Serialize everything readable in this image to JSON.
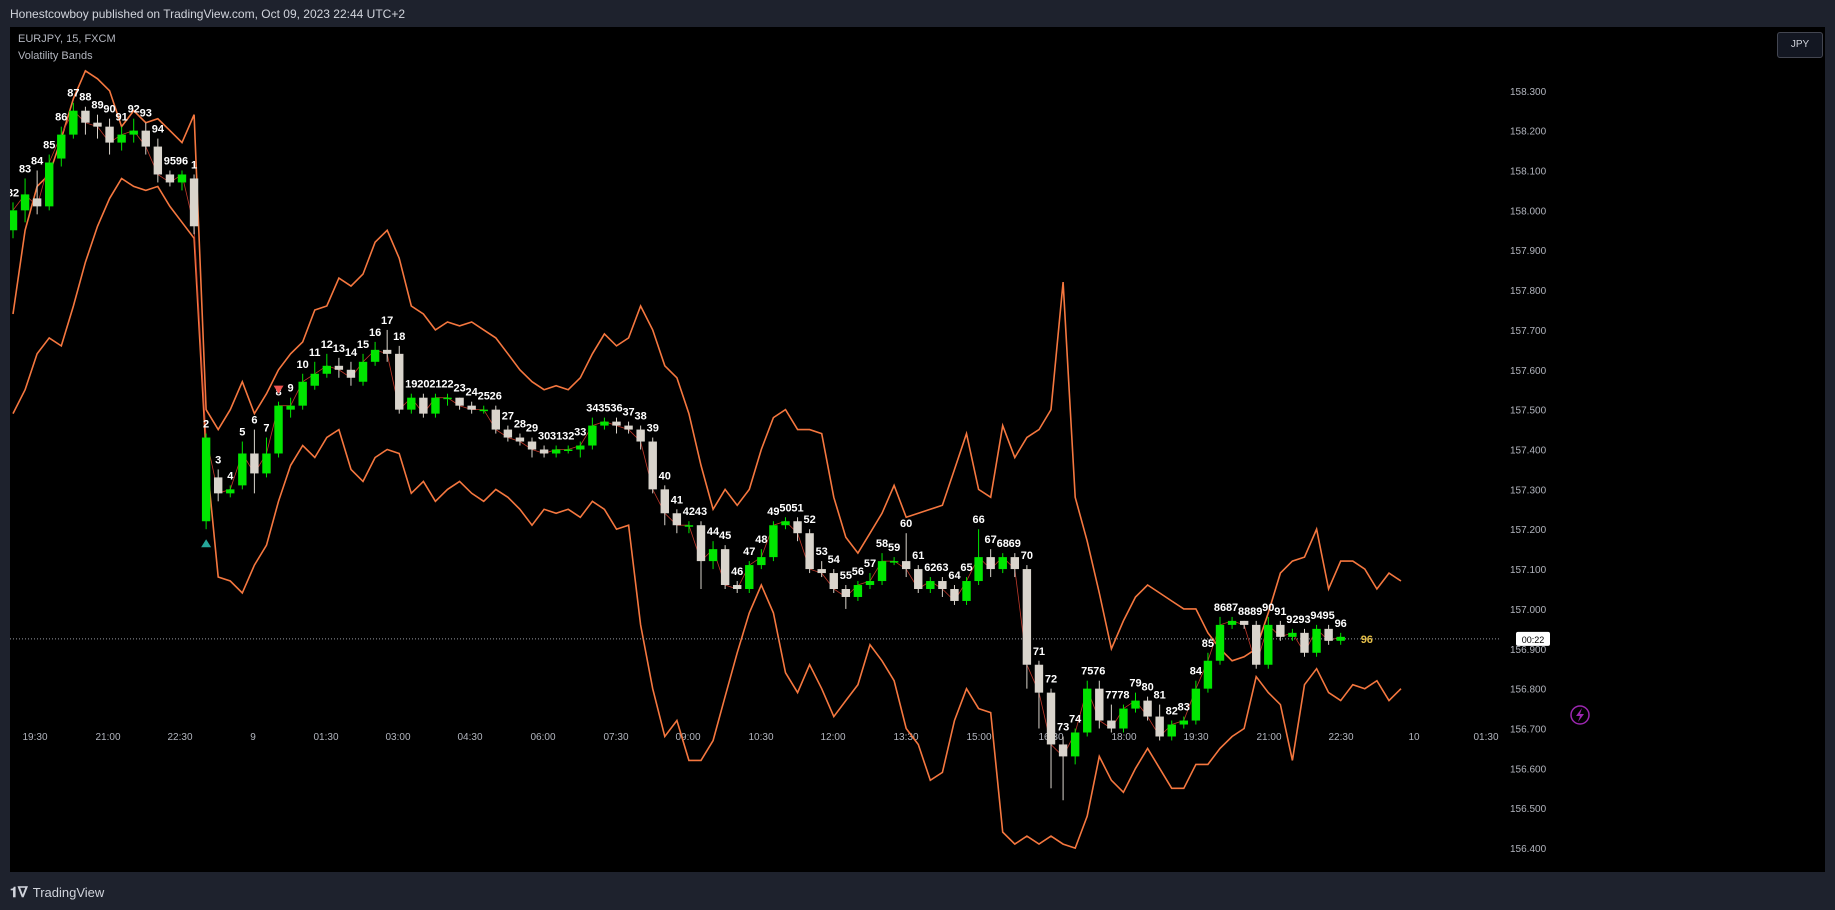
{
  "header": {
    "published": "Honestcowboy published on TradingView.com, Oct 09, 2023 22:44 UTC+2"
  },
  "legend": {
    "symbol": "EURJPY, 15, FXCM",
    "indicator": "Volatility Bands"
  },
  "currency_button": "JPY",
  "footer": {
    "brand": "TradingView"
  },
  "price_scale": {
    "labels": [
      "158.300",
      "158.200",
      "158.100",
      "158.000",
      "157.900",
      "157.800",
      "157.700",
      "157.600",
      "157.500",
      "157.400",
      "157.300",
      "157.200",
      "157.100",
      "157.000",
      "156.900",
      "156.800",
      "156.700",
      "156.600",
      "156.500",
      "156.400"
    ]
  },
  "countdown": "00:22",
  "last_count": "96",
  "colors": {
    "bull": "#00e600",
    "bear": "#d9d4cc",
    "band": "#f5773f",
    "counter": "#ffffff",
    "last_count": "#e6c04a",
    "background": "#000000"
  },
  "chart_data": {
    "type": "candlestick",
    "symbol": "EURJPY",
    "timeframe": "15",
    "ylim": [
      156.34,
      158.46
    ],
    "x_ticks": [
      "19:30",
      "21:00",
      "22:30",
      "9",
      "01:30",
      "03:00",
      "04:30",
      "06:00",
      "07:30",
      "09:00",
      "10:30",
      "12:00",
      "13:30",
      "15:00",
      "16:30",
      "18:00",
      "19:30",
      "21:00",
      "22:30",
      "10",
      "01:30"
    ],
    "y_ticks": [
      158.3,
      158.2,
      158.1,
      158.0,
      157.9,
      157.8,
      157.7,
      157.6,
      157.5,
      157.4,
      157.3,
      157.2,
      157.1,
      157.0,
      156.9,
      156.8,
      156.7,
      156.6,
      156.5,
      156.4
    ],
    "last_price": 156.925,
    "candles": [
      [
        157.95,
        158.0,
        157.93,
        158.02,
        "82"
      ],
      [
        158.0,
        158.04,
        157.97,
        158.08,
        "83"
      ],
      [
        158.03,
        158.01,
        157.99,
        158.1,
        "84"
      ],
      [
        158.01,
        158.12,
        158.0,
        158.14,
        "85"
      ],
      [
        158.13,
        158.19,
        158.11,
        158.21,
        "86"
      ],
      [
        158.19,
        158.25,
        158.18,
        158.27,
        "87"
      ],
      [
        158.25,
        158.22,
        158.19,
        158.26,
        "88"
      ],
      [
        158.22,
        158.21,
        158.18,
        158.24,
        "89"
      ],
      [
        158.21,
        158.17,
        158.14,
        158.23,
        "90"
      ],
      [
        158.17,
        158.19,
        158.15,
        158.21,
        "91"
      ],
      [
        158.19,
        158.2,
        158.17,
        158.23,
        "92"
      ],
      [
        158.2,
        158.16,
        158.14,
        158.22,
        "93"
      ],
      [
        158.16,
        158.09,
        158.07,
        158.18,
        "94"
      ],
      [
        158.09,
        158.07,
        158.06,
        158.1,
        "95"
      ],
      [
        158.07,
        158.09,
        158.05,
        158.1,
        "96"
      ],
      [
        158.08,
        157.96,
        157.94,
        158.09,
        "1"
      ],
      [
        157.22,
        157.43,
        157.2,
        157.44,
        "2"
      ],
      [
        157.33,
        157.29,
        157.27,
        157.35,
        "3"
      ],
      [
        157.29,
        157.3,
        157.28,
        157.31,
        "4"
      ],
      [
        157.31,
        157.39,
        157.3,
        157.42,
        "5"
      ],
      [
        157.39,
        157.34,
        157.29,
        157.45,
        "6"
      ],
      [
        157.34,
        157.39,
        157.33,
        157.43,
        "7"
      ],
      [
        157.39,
        157.51,
        157.38,
        157.52,
        "8"
      ],
      [
        157.5,
        157.51,
        157.48,
        157.53,
        "9"
      ],
      [
        157.51,
        157.57,
        157.5,
        157.59,
        "10"
      ],
      [
        157.56,
        157.59,
        157.55,
        157.62,
        "11"
      ],
      [
        157.59,
        157.61,
        157.58,
        157.64,
        "12"
      ],
      [
        157.61,
        157.6,
        157.58,
        157.63,
        "13"
      ],
      [
        157.6,
        157.58,
        157.56,
        157.62,
        "14"
      ],
      [
        157.57,
        157.62,
        157.56,
        157.64,
        "15"
      ],
      [
        157.62,
        157.65,
        157.61,
        157.67,
        "16"
      ],
      [
        157.65,
        157.64,
        157.62,
        157.7,
        "17"
      ],
      [
        157.64,
        157.5,
        157.49,
        157.66,
        "18"
      ],
      [
        157.5,
        157.53,
        157.49,
        157.54,
        "19"
      ],
      [
        157.53,
        157.49,
        157.48,
        157.54,
        "20"
      ],
      [
        157.49,
        157.53,
        157.48,
        157.54,
        "21"
      ],
      [
        157.53,
        157.53,
        157.51,
        157.54,
        "22"
      ],
      [
        157.53,
        157.51,
        157.5,
        157.53,
        "23"
      ],
      [
        157.51,
        157.5,
        157.49,
        157.52,
        "24"
      ],
      [
        157.5,
        157.5,
        157.49,
        157.51,
        "25"
      ],
      [
        157.5,
        157.45,
        157.44,
        157.51,
        "26"
      ],
      [
        157.45,
        157.43,
        157.42,
        157.46,
        "27"
      ],
      [
        157.43,
        157.42,
        157.41,
        157.44,
        "28"
      ],
      [
        157.42,
        157.4,
        157.38,
        157.43,
        "29"
      ],
      [
        157.4,
        157.39,
        157.38,
        157.41,
        "30"
      ],
      [
        157.39,
        157.4,
        157.38,
        157.41,
        "31"
      ],
      [
        157.4,
        157.4,
        157.39,
        157.41,
        "32"
      ],
      [
        157.4,
        157.41,
        157.38,
        157.42,
        "33"
      ],
      [
        157.41,
        157.46,
        157.4,
        157.48,
        "34"
      ],
      [
        157.46,
        157.47,
        157.45,
        157.48,
        "35"
      ],
      [
        157.47,
        157.46,
        157.44,
        157.48,
        "36"
      ],
      [
        157.46,
        157.45,
        157.44,
        157.47,
        "37"
      ],
      [
        157.45,
        157.42,
        157.4,
        157.46,
        "38"
      ],
      [
        157.42,
        157.3,
        157.29,
        157.43,
        "39"
      ],
      [
        157.3,
        157.24,
        157.21,
        157.31,
        "40"
      ],
      [
        157.24,
        157.21,
        157.19,
        157.25,
        "41"
      ],
      [
        157.21,
        157.21,
        157.19,
        157.22,
        "42"
      ],
      [
        157.21,
        157.12,
        157.05,
        157.22,
        "43"
      ],
      [
        157.12,
        157.15,
        157.1,
        157.17,
        "44"
      ],
      [
        157.15,
        157.06,
        157.05,
        157.16,
        "45"
      ],
      [
        157.06,
        157.05,
        157.04,
        157.07,
        "46"
      ],
      [
        157.05,
        157.11,
        157.04,
        157.12,
        "47"
      ],
      [
        157.11,
        157.13,
        157.1,
        157.15,
        "48"
      ],
      [
        157.13,
        157.21,
        157.12,
        157.22,
        "49"
      ],
      [
        157.21,
        157.22,
        157.2,
        157.23,
        "50"
      ],
      [
        157.22,
        157.19,
        157.17,
        157.23,
        "51"
      ],
      [
        157.19,
        157.1,
        157.09,
        157.2,
        "52"
      ],
      [
        157.1,
        157.09,
        157.08,
        157.12,
        "53"
      ],
      [
        157.09,
        157.05,
        157.04,
        157.1,
        "54"
      ],
      [
        157.05,
        157.03,
        157.0,
        157.06,
        "55"
      ],
      [
        157.03,
        157.06,
        157.02,
        157.07,
        "56"
      ],
      [
        157.06,
        157.07,
        157.05,
        157.09,
        "57"
      ],
      [
        157.07,
        157.12,
        157.06,
        157.14,
        "58"
      ],
      [
        157.12,
        157.12,
        157.11,
        157.13,
        "59"
      ],
      [
        157.12,
        157.1,
        157.08,
        157.19,
        "60"
      ],
      [
        157.1,
        157.05,
        157.04,
        157.11,
        "61"
      ],
      [
        157.05,
        157.07,
        157.04,
        157.08,
        "62"
      ],
      [
        157.07,
        157.05,
        157.03,
        157.08,
        "63"
      ],
      [
        157.05,
        157.02,
        157.01,
        157.06,
        "64"
      ],
      [
        157.02,
        157.07,
        157.01,
        157.08,
        "65"
      ],
      [
        157.07,
        157.13,
        157.06,
        157.2,
        "66"
      ],
      [
        157.13,
        157.1,
        157.08,
        157.15,
        "67"
      ],
      [
        157.1,
        157.13,
        157.09,
        157.14,
        "68"
      ],
      [
        157.13,
        157.1,
        157.08,
        157.14,
        "69"
      ],
      [
        157.1,
        156.86,
        156.8,
        157.11,
        "70"
      ],
      [
        156.86,
        156.79,
        156.7,
        156.87,
        "71"
      ],
      [
        156.79,
        156.66,
        156.55,
        156.8,
        "72"
      ],
      [
        156.66,
        156.63,
        156.52,
        156.68,
        "73"
      ],
      [
        156.63,
        156.69,
        156.61,
        156.7,
        "74"
      ],
      [
        156.69,
        156.8,
        156.68,
        156.82,
        "75"
      ],
      [
        156.8,
        156.72,
        156.7,
        156.82,
        "76"
      ],
      [
        156.72,
        156.7,
        156.69,
        156.76,
        "77"
      ],
      [
        156.7,
        156.75,
        156.69,
        156.76,
        "78"
      ],
      [
        156.75,
        156.77,
        156.74,
        156.79,
        "79"
      ],
      [
        156.77,
        156.73,
        156.72,
        156.78,
        "80"
      ],
      [
        156.73,
        156.68,
        156.67,
        156.76,
        "81"
      ],
      [
        156.68,
        156.71,
        156.67,
        156.72,
        "82"
      ],
      [
        156.71,
        156.72,
        156.7,
        156.73,
        "83"
      ],
      [
        156.72,
        156.8,
        156.71,
        156.82,
        "84"
      ],
      [
        156.8,
        156.87,
        156.79,
        156.89,
        "85"
      ],
      [
        156.87,
        156.96,
        156.86,
        156.98,
        "86"
      ],
      [
        156.96,
        156.97,
        156.95,
        156.98,
        "87"
      ],
      [
        156.97,
        156.96,
        156.95,
        156.97,
        "88"
      ],
      [
        156.96,
        156.86,
        156.85,
        156.97,
        "89"
      ],
      [
        156.86,
        156.96,
        156.85,
        156.98,
        "90"
      ],
      [
        156.96,
        156.93,
        156.92,
        156.97,
        "91"
      ],
      [
        156.93,
        156.94,
        156.92,
        156.95,
        "92"
      ],
      [
        156.94,
        156.89,
        156.88,
        156.95,
        "93"
      ],
      [
        156.89,
        156.95,
        156.88,
        156.96,
        "94"
      ],
      [
        156.95,
        156.92,
        156.91,
        156.96,
        "95"
      ],
      [
        156.92,
        156.93,
        156.91,
        156.94,
        "96"
      ]
    ],
    "upper_band": [
      157.74,
      157.95,
      158.06,
      158.09,
      158.18,
      158.28,
      158.35,
      158.33,
      158.3,
      158.21,
      158.25,
      158.22,
      158.23,
      158.2,
      158.17,
      158.24,
      157.5,
      157.45,
      157.5,
      157.57,
      157.49,
      157.54,
      157.6,
      157.64,
      157.67,
      157.75,
      157.76,
      157.83,
      157.81,
      157.84,
      157.92,
      157.95,
      157.88,
      157.76,
      157.74,
      157.7,
      157.72,
      157.71,
      157.72,
      157.7,
      157.68,
      157.64,
      157.6,
      157.57,
      157.55,
      157.56,
      157.55,
      157.58,
      157.64,
      157.69,
      157.66,
      157.68,
      157.76,
      157.7,
      157.61,
      157.58,
      157.49,
      157.36,
      157.25,
      157.3,
      157.26,
      157.3,
      157.4,
      157.48,
      157.5,
      157.45,
      157.45,
      157.44,
      157.28,
      157.18,
      157.14,
      157.19,
      157.24,
      157.31,
      157.23,
      157.24,
      157.25,
      157.26,
      157.35,
      157.44,
      157.3,
      157.28,
      157.46,
      157.38,
      157.43,
      157.45,
      157.5,
      157.82,
      157.28,
      157.17,
      157.04,
      156.9,
      156.97,
      157.03,
      157.06,
      157.04,
      157.02,
      157.0,
      157.0,
      156.94,
      156.9,
      156.87,
      156.88,
      156.9,
      156.99,
      157.09,
      157.12,
      157.13,
      157.2,
      157.05,
      157.12,
      157.12,
      157.1,
      157.05,
      157.09,
      157.07
    ],
    "lower_band": [
      157.49,
      157.55,
      157.64,
      157.68,
      157.66,
      157.76,
      157.87,
      157.96,
      158.03,
      158.08,
      158.06,
      158.05,
      158.06,
      158.01,
      157.97,
      157.93,
      157.39,
      157.08,
      157.07,
      157.04,
      157.11,
      157.16,
      157.27,
      157.36,
      157.41,
      157.38,
      157.43,
      157.45,
      157.35,
      157.32,
      157.38,
      157.4,
      157.39,
      157.29,
      157.32,
      157.27,
      157.3,
      157.32,
      157.29,
      157.27,
      157.3,
      157.28,
      157.25,
      157.21,
      157.25,
      157.24,
      157.25,
      157.23,
      157.27,
      157.25,
      157.2,
      157.21,
      156.96,
      156.8,
      156.68,
      156.72,
      156.62,
      156.62,
      156.67,
      156.78,
      156.89,
      156.99,
      157.06,
      156.99,
      156.84,
      156.79,
      156.86,
      156.8,
      156.73,
      156.77,
      156.81,
      156.91,
      156.87,
      156.82,
      156.7,
      156.66,
      156.57,
      156.59,
      156.72,
      156.8,
      156.75,
      156.74,
      156.44,
      156.41,
      156.43,
      156.41,
      156.43,
      156.41,
      156.4,
      156.48,
      156.63,
      156.57,
      156.54,
      156.6,
      156.65,
      156.6,
      156.55,
      156.55,
      156.61,
      156.61,
      156.65,
      156.68,
      156.7,
      156.83,
      156.79,
      156.76,
      156.62,
      156.81,
      156.85,
      156.79,
      156.77,
      156.81,
      156.8,
      156.82,
      156.77,
      156.8
    ]
  }
}
